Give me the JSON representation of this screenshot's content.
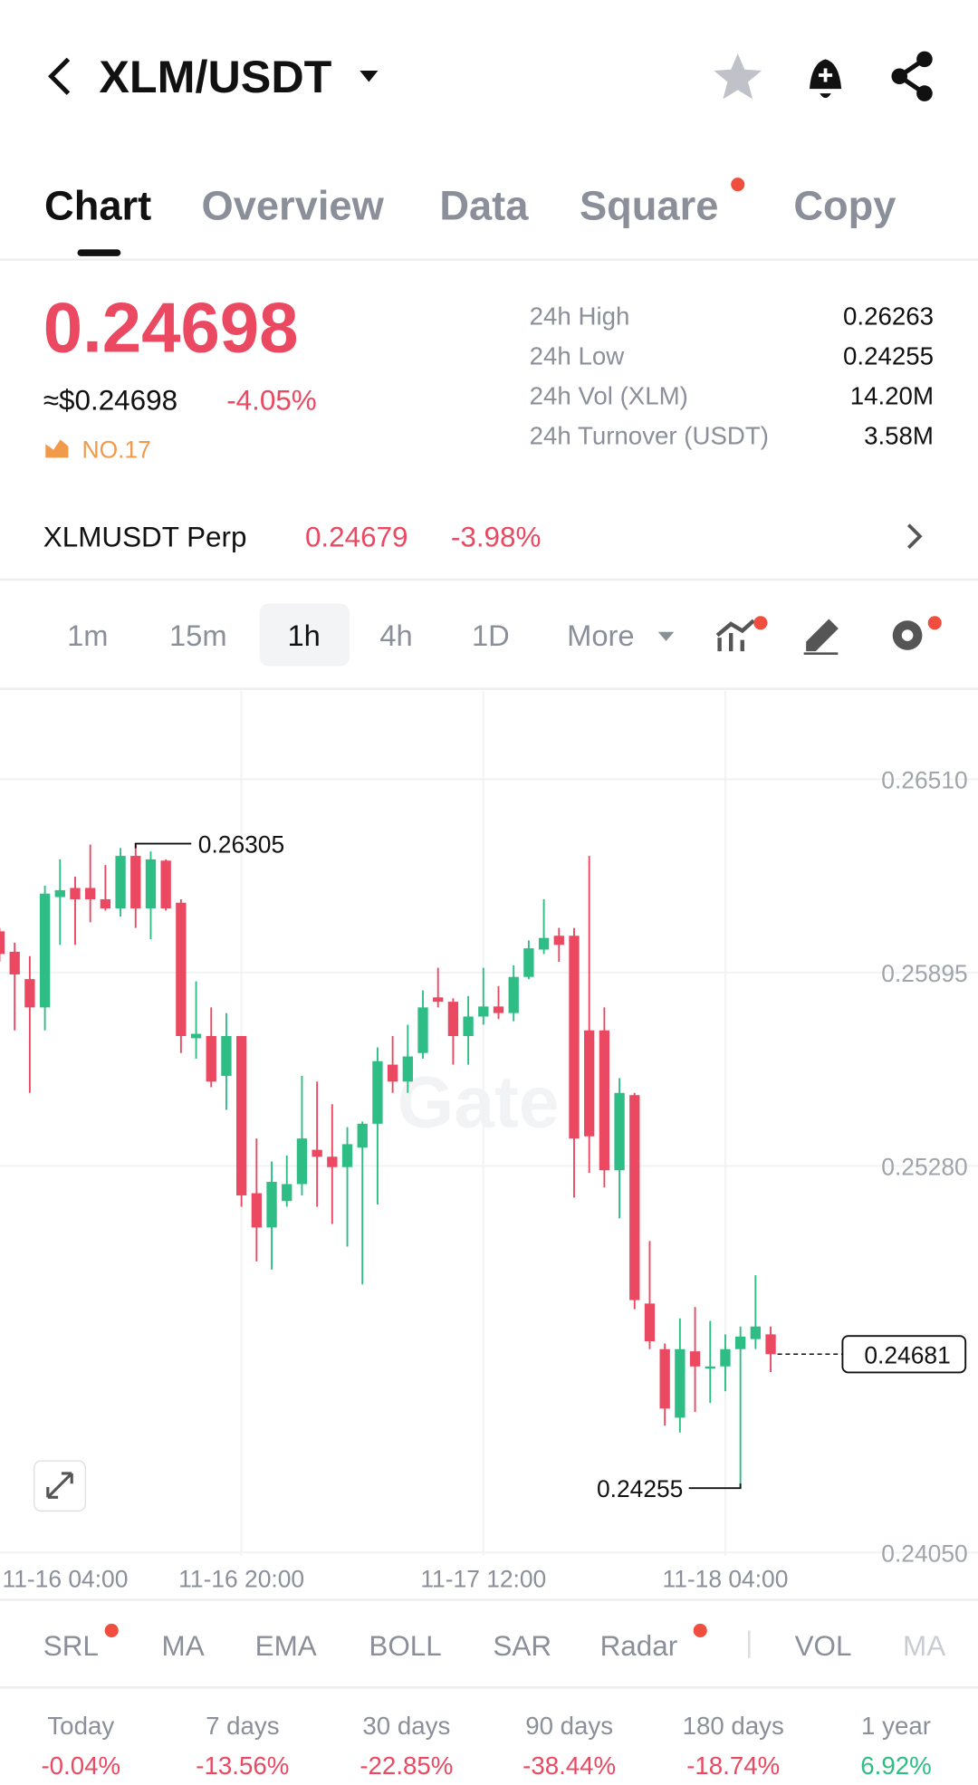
{
  "header": {
    "title": "XLM/USDT"
  },
  "tabs": [
    "Chart",
    "Overview",
    "Data",
    "Square",
    "Copy"
  ],
  "price": {
    "last": "0.24698",
    "usd": "≈$0.24698",
    "change": "-4.05%",
    "rank": "NO.17"
  },
  "stats": [
    {
      "label": "24h High",
      "value": "0.26263"
    },
    {
      "label": "24h Low",
      "value": "0.24255"
    },
    {
      "label": "24h Vol (XLM)",
      "value": "14.20M"
    },
    {
      "label": "24h Turnover (USDT)",
      "value": "3.58M"
    }
  ],
  "perp": {
    "name": "XLMUSDT Perp",
    "price": "0.24679",
    "change": "-3.98%"
  },
  "intervals": [
    "1m",
    "15m",
    "1h",
    "4h",
    "1D",
    "More"
  ],
  "chart_data": {
    "type": "candlestick",
    "watermark": "Gate",
    "up_color": "#2ebd85",
    "down_color": "#ea4961",
    "ylim": [
      0.2403,
      0.2679
    ],
    "yticks": [
      {
        "value": 0.2651,
        "label": "0.26510"
      },
      0.25895,
      {
        "value": 0.2528,
        "label": "0.25280"
      },
      {
        "value": 0.2405,
        "label": "0.24050"
      }
    ],
    "grid": true,
    "categories": [
      "11-16 04:00",
      null,
      null,
      null,
      null,
      null,
      null,
      null,
      null,
      null,
      null,
      null,
      null,
      null,
      null,
      null,
      "11-16 20:00",
      null,
      null,
      null,
      null,
      null,
      null,
      null,
      null,
      null,
      null,
      null,
      null,
      null,
      null,
      null,
      "11-17 12:00",
      null,
      null,
      null,
      null,
      null,
      null,
      null,
      null,
      null,
      null,
      null,
      null,
      null,
      null,
      null,
      "11-18 04:00",
      null,
      null,
      null
    ],
    "open": [
      0.26026,
      0.25961,
      0.25874,
      0.25784,
      0.26135,
      0.26164,
      0.26164,
      0.26128,
      0.26099,
      0.26266,
      0.26099,
      0.26251,
      0.26117,
      0.25686,
      0.25693,
      0.25566,
      0.25693,
      0.25193,
      0.25084,
      0.25168,
      0.25222,
      0.25331,
      0.25309,
      0.25276,
      0.25338,
      0.25414,
      0.25602,
      0.25548,
      0.25639,
      0.25816,
      0.25802,
      0.25693,
      0.25755,
      0.25787,
      0.25766,
      0.25881,
      0.25968,
      0.26012,
      0.26012,
      0.25711,
      0.25711,
      0.25266,
      0.25505,
      0.24842,
      0.24697,
      0.24479,
      0.2469,
      0.24635,
      0.24642,
      0.24697,
      0.24729,
      0.24744
    ],
    "high": [
      0.26037,
      0.2599,
      0.25947,
      0.26171,
      0.26255,
      0.262,
      0.26302,
      0.26237,
      0.26291,
      0.26305,
      0.2628,
      0.26255,
      0.26128,
      0.25867,
      0.25784,
      0.25766,
      0.25693,
      0.25367,
      0.25294,
      0.25313,
      0.25566,
      0.25548,
      0.25476,
      0.25403,
      0.25421,
      0.25657,
      0.25693,
      0.25729,
      0.25838,
      0.2591,
      0.25813,
      0.2582,
      0.2591,
      0.25852,
      0.25918,
      0.25997,
      0.26128,
      0.26037,
      0.26037,
      0.26266,
      0.25784,
      0.25559,
      0.25512,
      0.25041,
      0.24715,
      0.24795,
      0.24831,
      0.24787,
      0.24744,
      0.24769,
      0.24932,
      0.24769
    ],
    "low": [
      0.25929,
      0.25711,
      0.25512,
      0.25711,
      0.25983,
      0.25983,
      0.26055,
      0.26092,
      0.26073,
      0.26037,
      0.26001,
      0.26092,
      0.25639,
      0.25621,
      0.2553,
      0.25458,
      0.2515,
      0.24976,
      0.2495,
      0.2515,
      0.25186,
      0.2515,
      0.25095,
      0.25023,
      0.24903,
      0.25157,
      0.25512,
      0.25512,
      0.25621,
      0.25784,
      0.25602,
      0.25602,
      0.25729,
      0.25747,
      0.2574,
      0.25874,
      0.25954,
      0.25929,
      0.25179,
      0.25258,
      0.25211,
      0.25113,
      0.24824,
      0.24697,
      0.24454,
      0.24432,
      0.24497,
      0.24526,
      0.24563,
      0.24255,
      0.24697,
      0.24624
    ],
    "close": [
      0.25954,
      0.25889,
      0.25784,
      0.26146,
      0.26157,
      0.26128,
      0.26128,
      0.26099,
      0.26266,
      0.26099,
      0.26255,
      0.26099,
      0.25693,
      0.257,
      0.25548,
      0.25693,
      0.25186,
      0.25084,
      0.25229,
      0.25222,
      0.25367,
      0.25309,
      0.25276,
      0.25349,
      0.25414,
      0.25613,
      0.25548,
      0.25628,
      0.25784,
      0.25802,
      0.25693,
      0.25755,
      0.25787,
      0.25766,
      0.25881,
      0.25972,
      0.26005,
      0.25983,
      0.25367,
      0.25374,
      0.25266,
      0.25512,
      0.24853,
      0.24722,
      0.24508,
      0.24697,
      0.24642,
      0.24642,
      0.24697,
      0.24737,
      0.24769,
      0.24681
    ],
    "max_label": 0.26305,
    "min_label": 0.24255,
    "last_price": 0.24681
  },
  "indicators": [
    "SRL",
    "MA",
    "EMA",
    "BOLL",
    "SAR",
    "Radar",
    "VOL",
    "MA"
  ],
  "performance": [
    {
      "period": "Today",
      "change": "-0.04%",
      "color": "#ea4961"
    },
    {
      "period": "7 days",
      "change": "-13.56%",
      "color": "#ea4961"
    },
    {
      "period": "30 days",
      "change": "-22.85%",
      "color": "#ea4961"
    },
    {
      "period": "90 days",
      "change": "-38.44%",
      "color": "#ea4961"
    },
    {
      "period": "180 days",
      "change": "-18.74%",
      "color": "#ea4961"
    },
    {
      "period": "1 year",
      "change": "6.92%",
      "color": "#2ebd85"
    }
  ]
}
